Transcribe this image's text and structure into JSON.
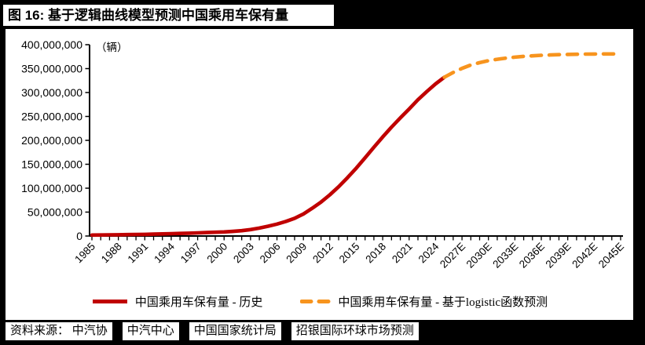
{
  "title": "图 16: 基于逻辑曲线模型预测中国乘用车保有量",
  "source_bar": {
    "items": [
      "资料来源： 中汽协",
      "中汽中心",
      "中国国家统计局",
      "招银国际环球市场预测"
    ]
  },
  "chart_data": {
    "type": "line",
    "title": "基于逻辑曲线模型预测中国乘用车保有量",
    "unit_label": "（辆）",
    "xlabel": "",
    "ylabel": "",
    "ylim": [
      0,
      400000000
    ],
    "ytick_step": 50000000,
    "ytick_labels": [
      "0",
      "50,000,000",
      "100,000,000",
      "150,000,000",
      "200,000,000",
      "250,000,000",
      "300,000,000",
      "350,000,000",
      "400,000,000"
    ],
    "xtick_labels": [
      "1985",
      "1988",
      "1991",
      "1994",
      "1997",
      "2000",
      "2003",
      "2006",
      "2009",
      "2012",
      "2015",
      "2018",
      "2021",
      "2024",
      "2027E",
      "2030E",
      "2033E",
      "2036E",
      "2039E",
      "2042E",
      "2045E"
    ],
    "x_year_range": [
      1985,
      2045
    ],
    "grid": false,
    "legend_position": "bottom",
    "axis_color": "#000000",
    "series": [
      {
        "name": "中国乘用车保有量 - 历史",
        "color": "#c00000",
        "style": "solid",
        "points": [
          [
            1985,
            2000000
          ],
          [
            1986,
            2200000
          ],
          [
            1987,
            2400000
          ],
          [
            1988,
            2700000
          ],
          [
            1989,
            3000000
          ],
          [
            1990,
            3200000
          ],
          [
            1991,
            3500000
          ],
          [
            1992,
            3900000
          ],
          [
            1993,
            4400000
          ],
          [
            1994,
            4900000
          ],
          [
            1995,
            5400000
          ],
          [
            1996,
            5900000
          ],
          [
            1997,
            6500000
          ],
          [
            1998,
            7200000
          ],
          [
            1999,
            7800000
          ],
          [
            2000,
            8500000
          ],
          [
            2001,
            9700000
          ],
          [
            2002,
            11200000
          ],
          [
            2003,
            13500000
          ],
          [
            2004,
            16500000
          ],
          [
            2005,
            20500000
          ],
          [
            2006,
            25000000
          ],
          [
            2007,
            30500000
          ],
          [
            2008,
            37000000
          ],
          [
            2009,
            46000000
          ],
          [
            2010,
            58000000
          ],
          [
            2011,
            71000000
          ],
          [
            2012,
            86000000
          ],
          [
            2013,
            103000000
          ],
          [
            2014,
            122000000
          ],
          [
            2015,
            142000000
          ],
          [
            2016,
            163500000
          ],
          [
            2017,
            185500000
          ],
          [
            2018,
            207000000
          ],
          [
            2019,
            227500000
          ],
          [
            2020,
            247000000
          ],
          [
            2021,
            265500000
          ],
          [
            2022,
            285000000
          ],
          [
            2023,
            302000000
          ],
          [
            2024,
            318000000
          ],
          [
            2025,
            332000000
          ]
        ]
      },
      {
        "name": "中国乘用车保有量 - 基于logistic函数预测",
        "color": "#f7941e",
        "style": "dashed",
        "points": [
          [
            2025,
            332000000
          ],
          [
            2026,
            342000000
          ],
          [
            2027,
            350500000
          ],
          [
            2028,
            357500000
          ],
          [
            2029,
            362500000
          ],
          [
            2030,
            366500000
          ],
          [
            2031,
            369500000
          ],
          [
            2032,
            372000000
          ],
          [
            2033,
            374000000
          ],
          [
            2034,
            375500000
          ],
          [
            2035,
            376800000
          ],
          [
            2036,
            377800000
          ],
          [
            2037,
            378600000
          ],
          [
            2038,
            379200000
          ],
          [
            2039,
            379700000
          ],
          [
            2040,
            380000000
          ],
          [
            2041,
            380300000
          ],
          [
            2042,
            380500000
          ],
          [
            2043,
            380600000
          ],
          [
            2044,
            380700000
          ],
          [
            2045,
            380800000
          ]
        ]
      }
    ]
  }
}
